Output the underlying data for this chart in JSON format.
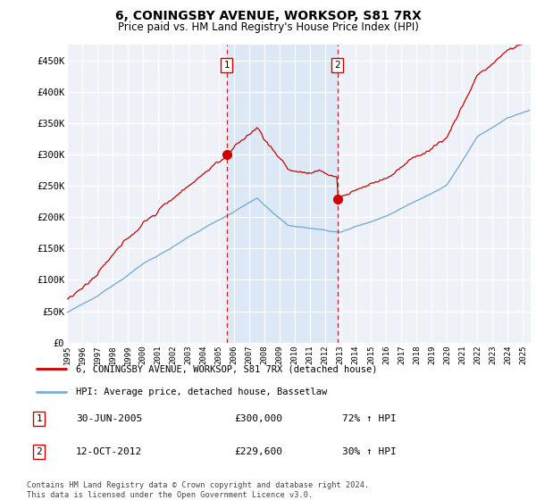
{
  "title": "6, CONINGSBY AVENUE, WORKSOP, S81 7RX",
  "subtitle": "Price paid vs. HM Land Registry's House Price Index (HPI)",
  "xlim_start": 1995.0,
  "xlim_end": 2025.5,
  "ylim": [
    0,
    475000
  ],
  "yticks": [
    0,
    50000,
    100000,
    150000,
    200000,
    250000,
    300000,
    350000,
    400000,
    450000
  ],
  "ytick_labels": [
    "£0",
    "£50K",
    "£100K",
    "£150K",
    "£200K",
    "£250K",
    "£300K",
    "£350K",
    "£400K",
    "£450K"
  ],
  "red_line_color": "#cc0000",
  "blue_line_color": "#7aadd4",
  "vline_color": "#cc0000",
  "shade_color": "#dce8f5",
  "marker1_x": 2005.5,
  "marker1_y": 300000,
  "marker2_x": 2012.79,
  "marker2_y": 229600,
  "legend_line1": "6, CONINGSBY AVENUE, WORKSOP, S81 7RX (detached house)",
  "legend_line2": "HPI: Average price, detached house, Bassetlaw",
  "annotation1_date": "30-JUN-2005",
  "annotation1_price": "£300,000",
  "annotation1_hpi": "72% ↑ HPI",
  "annotation2_date": "12-OCT-2012",
  "annotation2_price": "£229,600",
  "annotation2_hpi": "30% ↑ HPI",
  "footer": "Contains HM Land Registry data © Crown copyright and database right 2024.\nThis data is licensed under the Open Government Licence v3.0.",
  "background_color": "#ffffff",
  "plot_bg_color": "#eef2f8"
}
